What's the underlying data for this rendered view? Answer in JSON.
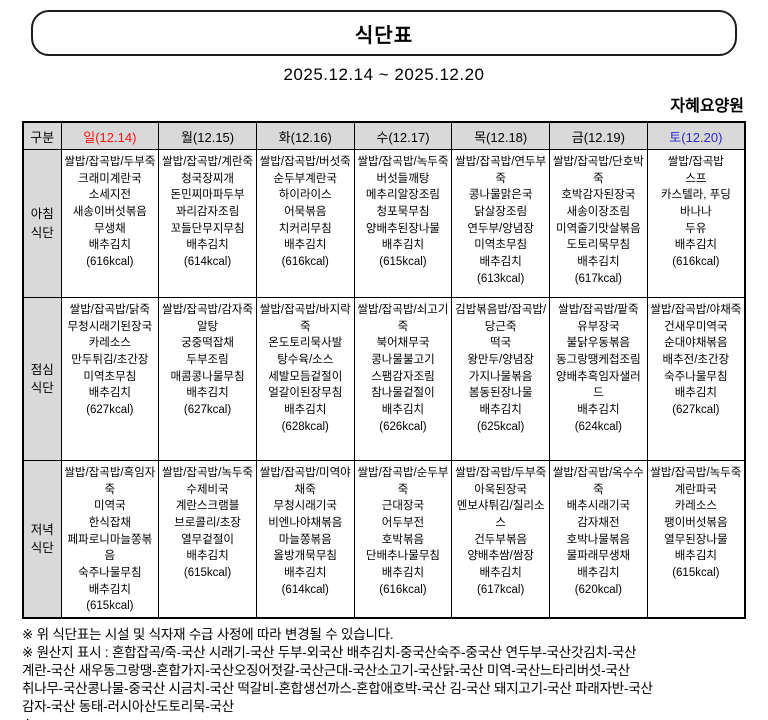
{
  "page": {
    "title": "식단표",
    "date_range": "2025.12.14 ~ 2025.12.20",
    "facility_name": "자혜요양원"
  },
  "colors": {
    "sunday_text": "#ff1111",
    "saturday_text": "#2929cc",
    "header_bg": "#d9d9d9",
    "border": "#000000"
  },
  "table": {
    "corner_label": "구분",
    "day_headers": [
      {
        "label": "일(12.14)"
      },
      {
        "label": "월(12.15)"
      },
      {
        "label": "화(12.16)"
      },
      {
        "label": "수(12.17)"
      },
      {
        "label": "목(12.18)"
      },
      {
        "label": "금(12.19)"
      },
      {
        "label": "토(12.20)"
      }
    ],
    "rows": [
      {
        "label": "아침\n식단",
        "cells": [
          "쌀밥/잡곡밥/두부죽\n크래미계란국\n소세지전\n새송이버섯볶음\n무생채\n배추김치\n(616kcal)",
          "쌀밥/잡곡밥/계란죽\n청국장찌개\n돈민찌마파두부\n꽈리감자조림\n꼬들단무지무침\n배추김치\n(614kcal)",
          "쌀밥/잡곡밥/버섯죽\n순두부계란국\n하이라이스\n어묵볶음\n치커리무침\n배추김치\n(616kcal)",
          "쌀밥/잡곡밥/녹두죽\n버섯들깨탕\n메추리알장조림\n청포묵무침\n양배추된장나물\n배추김치\n(615kcal)",
          "쌀밥/잡곡밥/연두부죽\n콩나물맑은국\n닭살장조림\n연두부/양념장\n미역초무침\n배추김치\n(613kcal)",
          "쌀밥/잡곡밥/단호박죽\n호박감자된장국\n새송이장조림\n미역줄기맛살볶음\n도토리묵무침\n배추김치\n(617kcal)",
          "쌀밥/잡곡밥\n스프\n카스텔라, 푸딩\n바나나\n두유\n배추김치\n(616kcal)"
        ]
      },
      {
        "label": "점심\n식단",
        "cells": [
          "쌀밥/잡곡밥/닭죽\n무청시래기된장국\n카레소스\n만두튀김/초간장\n미역초무침\n배추김치\n(627kcal)",
          "쌀밥/잡곡밥/감자죽\n알탕\n궁중떡잡채\n두부조림\n매콤콩나물무침\n배추김치\n(627kcal)",
          "쌀밥/잡곡밥/바지락죽\n온도토리묵사발\n탕수육/소스\n세발모듬겉절이\n얼갈이된장무침\n배추김치\n(628kcal)",
          "쌀밥/잡곡밥/쇠고기죽\n북어채무국\n콩나물불고기\n스팸감자조림\n참나물겉절이\n배추김치\n(626kcal)",
          "김밥볶음밥/잡곡밥/당근죽\n떡국\n왕만두/양념장\n가지나물볶음\n봄동된장나물\n배추김치\n(625kcal)",
          "쌀밥/잡곡밥/팥죽\n유부장국\n불닭우동볶음\n동그랑땡케첩조림\n양배추흑임자샐러드\n배추김치\n(624kcal)",
          "쌀밥/잡곡밥/야채죽\n건새우미역국\n순대야채볶음\n배추전/초간장\n숙주나물무침\n배추김치\n(627kcal)"
        ]
      },
      {
        "label": "저녁\n식단",
        "cells": [
          "쌀밥/잡곡밥/흑임자죽\n미역국\n한식잡채\n페파로니마늘쫑볶음\n숙주나물무침\n배추김치\n(615kcal)",
          "쌀밥/잡곡밥/녹두죽\n수제비국\n계란스크램블\n브로콜리/초장\n열무겉절이\n배추김치\n(615kcal)",
          "쌀밥/잡곡밥/미역야채죽\n무청시래기국\n비엔나야채볶음\n마늘쫑볶음\n올방개묵무침\n배추김치\n(614kcal)",
          "쌀밥/잡곡밥/순두부죽\n근대장국\n어두부전\n호박볶음\n단배추나물무침\n배추김치\n(616kcal)",
          "쌀밥/잡곡밥/두부죽\n아욱된장국\n멘보샤튀김/칠리소스\n건두부볶음\n양배추쌈/쌈장\n배추김치\n(617kcal)",
          "쌀밥/잡곡밥/옥수수죽\n배추시래기국\n감자채전\n호박나물볶음\n물파래무생채\n배추김치\n(620kcal)",
          "쌀밥/잡곡밥/녹두죽\n계란파국\n카레소스\n팽이버섯볶음\n열무된장나물\n배추김치\n(615kcal)"
        ]
      }
    ]
  },
  "footnotes": {
    "lines": [
      "※ 위 식단표는 시설 및 식자재 수급 사정에 따라 변경될 수 있습니다.",
      "※ 원산지 표시 : 혼합잡곡/죽-국산 시래기-국산 두부-외국산 배추김치-중국산숙주-중국산 연두부-국산갓김치-국산",
      "계란-국산 새우동그랑땡-혼합가지-국산오징어젓갈-국산근대-국산소고기-국산닭-국산 미역-국산느타리버섯-국산",
      "취나무-국산콩나물-중국산 시금치-국산 떡갈비-혼합생선까스-혼합애호박-국산 김-국산 돼지고기-국산 파래자반-국산",
      "감자-국산 동태-러시아산도토리묵-국산",
      "※"
    ]
  }
}
